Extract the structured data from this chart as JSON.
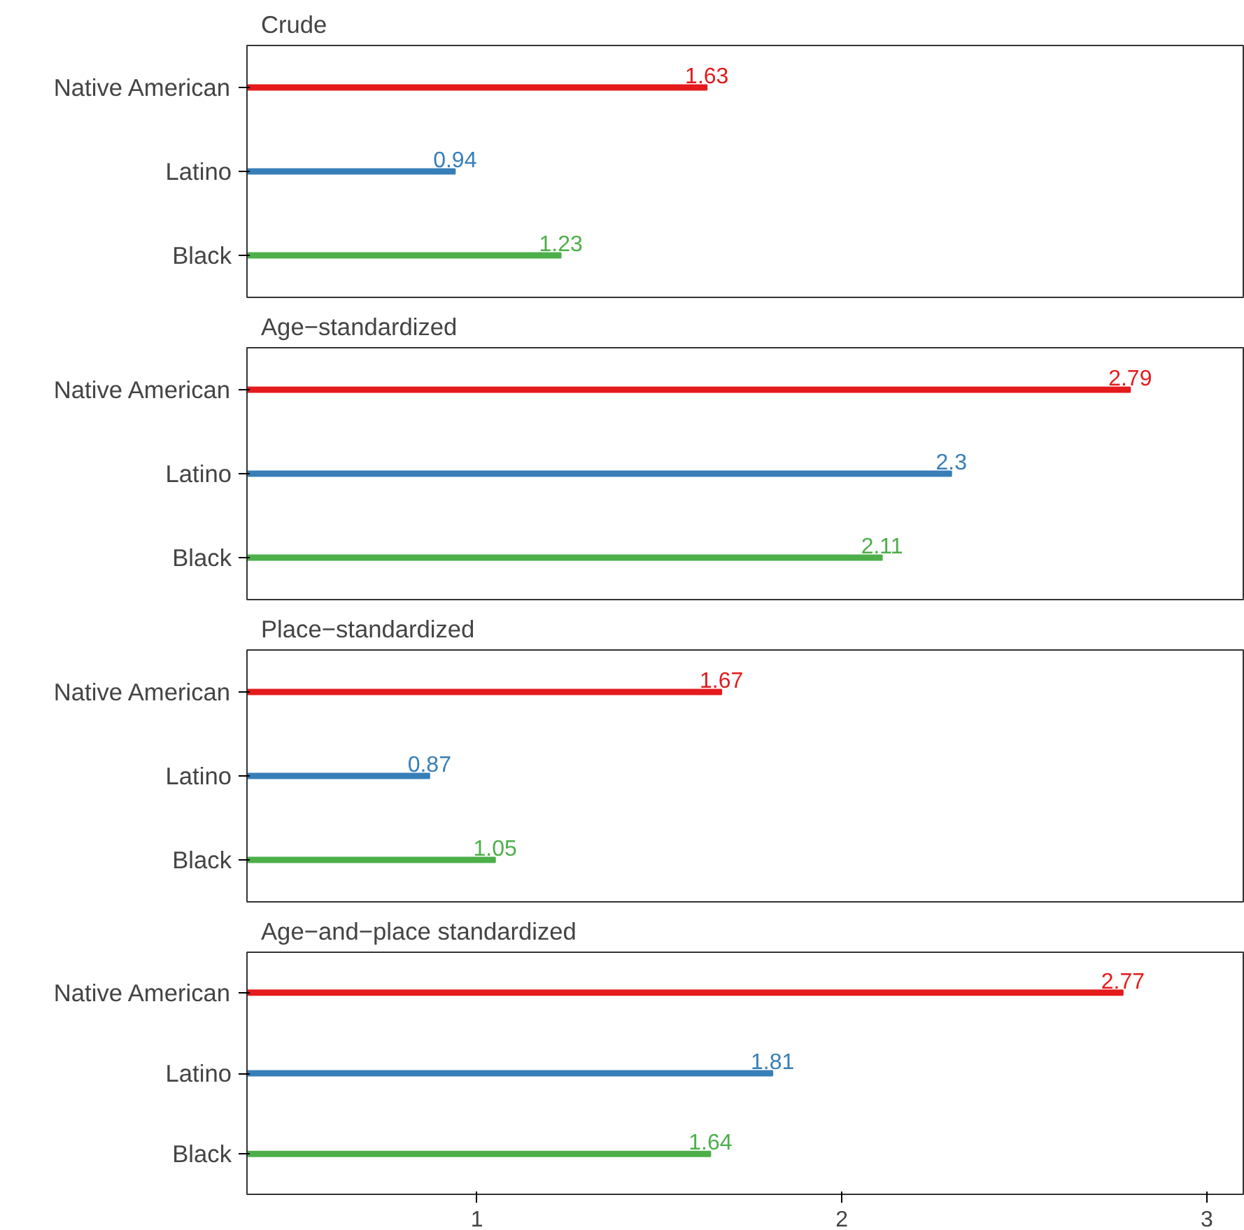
{
  "chart_data": [
    {
      "type": "bar",
      "orientation": "horizontal",
      "title": "Crude",
      "categories": [
        "Native American",
        "Latino",
        "Black"
      ],
      "values": [
        1.63,
        0.94,
        1.23
      ],
      "colors": [
        "#e41a1c",
        "#377eb8",
        "#4daf4a"
      ],
      "data_labels": true,
      "xlim": [
        0.37,
        3.1
      ],
      "xticks": [
        1,
        2,
        3
      ],
      "tick_labels": "y",
      "grid": false
    },
    {
      "type": "bar",
      "orientation": "horizontal",
      "title": "Age−standardized",
      "categories": [
        "Native American",
        "Latino",
        "Black"
      ],
      "values": [
        2.79,
        2.3,
        2.11
      ],
      "colors": [
        "#e41a1c",
        "#377eb8",
        "#4daf4a"
      ],
      "data_labels": true,
      "xlim": [
        0.37,
        3.1
      ],
      "xticks": [
        1,
        2,
        3
      ],
      "tick_labels": "y",
      "grid": false
    },
    {
      "type": "bar",
      "orientation": "horizontal",
      "title": "Place−standardized",
      "categories": [
        "Native American",
        "Latino",
        "Black"
      ],
      "values": [
        1.67,
        0.87,
        1.05
      ],
      "colors": [
        "#e41a1c",
        "#377eb8",
        "#4daf4a"
      ],
      "data_labels": true,
      "xlim": [
        0.37,
        3.1
      ],
      "xticks": [
        1,
        2,
        3
      ],
      "tick_labels": "y",
      "grid": false
    },
    {
      "type": "bar",
      "orientation": "horizontal",
      "title": "Age−and−place standardized",
      "categories": [
        "Native American",
        "Latino",
        "Black"
      ],
      "values": [
        2.77,
        1.81,
        1.64
      ],
      "colors": [
        "#e41a1c",
        "#377eb8",
        "#4daf4a"
      ],
      "data_labels": true,
      "xlim": [
        0.37,
        3.1
      ],
      "xticks": [
        1,
        2,
        3
      ],
      "grid": false
    }
  ]
}
